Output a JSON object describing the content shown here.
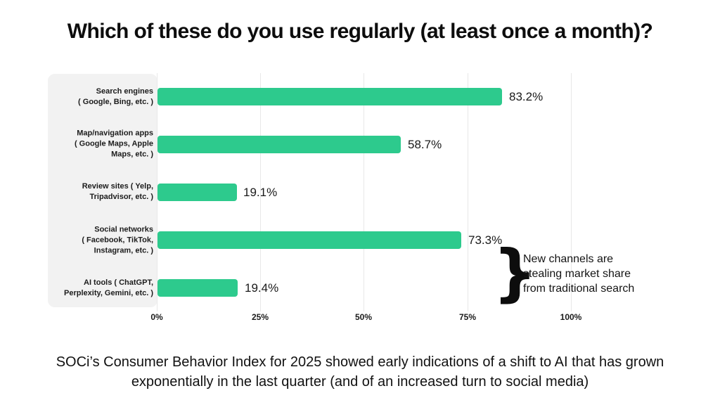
{
  "title": "Which of these do you use regularly (at least once a month)?",
  "chart_data": {
    "type": "bar",
    "orientation": "horizontal",
    "title": "Which of these do you use regularly (at least once a month)?",
    "categories": [
      "Search engines (Google, Bing, etc.)",
      "Map/navigation apps (Google Maps, Apple Maps, etc.)",
      "Review sites (Yelp, Tripadvisor, etc.)",
      "Social networks (Facebook, TikTok, Instagram, etc.)",
      "AI tools (ChatGPT, Perplexity, Gemini, etc.)"
    ],
    "category_labels": [
      "Search engines\n( Google, Bing, etc. )",
      "Map/navigation apps\n( Google Maps, Apple\nMaps, etc. )",
      "Review sites ( Yelp,\nTripadvisor, etc. )",
      "Social networks\n( Facebook, TikTok,\nInstagram, etc. )",
      "AI tools ( ChatGPT,\nPerplexity, Gemini, etc. )"
    ],
    "values": [
      83.2,
      58.7,
      19.1,
      73.3,
      19.4
    ],
    "value_labels": [
      "83.2%",
      "58.7%",
      "19.1%",
      "73.3%",
      "19.4%"
    ],
    "x_ticks": [
      "0%",
      "25%",
      "50%",
      "75%",
      "100%"
    ],
    "xlim": [
      0,
      100
    ],
    "grid": "vertical",
    "legend": "none",
    "bar_color": "#2dca8d",
    "label_panel_color": "#f2f2f2",
    "gridline_color": "#e8e8e8"
  },
  "annotation": {
    "brace_glyph": "}",
    "text": "New channels are\nstealing market share\nfrom traditional search"
  },
  "footer": "SOCi’s Consumer Behavior Index for 2025 showed early indications of a shift to AI that has grown\nexponentially in the last quarter (and of an increased turn to social media)"
}
